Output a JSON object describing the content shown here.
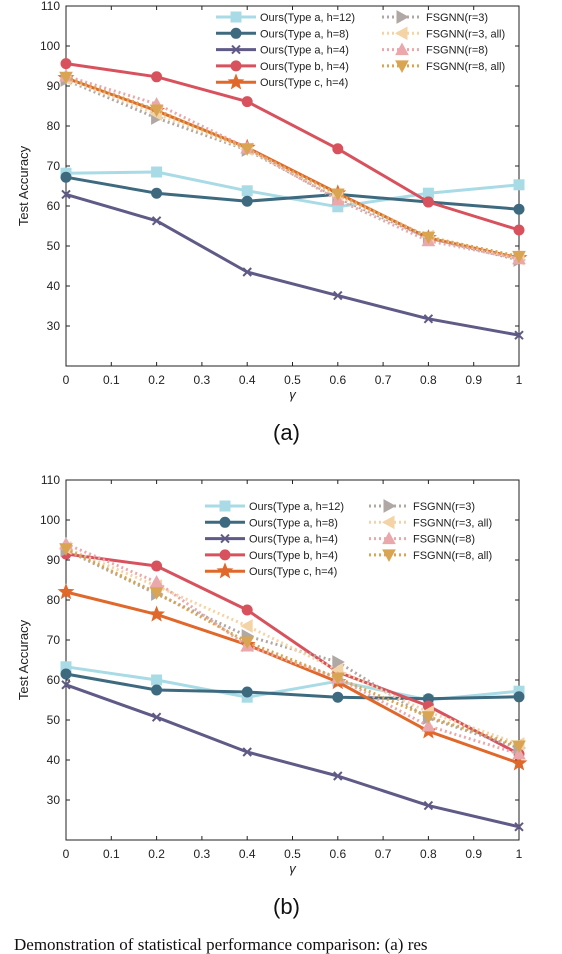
{
  "caption": "Demonstration of statistical performance comparison: (a) res",
  "chart_data": [
    {
      "type": "line",
      "panel_label": "(a)",
      "xlabel": "γ",
      "ylabel": "Test Accuracy",
      "xlim": [
        0,
        1
      ],
      "ylim": [
        20,
        110
      ],
      "xticks": [
        "0",
        "0.1",
        "0.2",
        "0.3",
        "0.4",
        "0.5",
        "0.6",
        "0.7",
        "0.8",
        "0.9",
        "1"
      ],
      "yticks": [
        "30",
        "40",
        "50",
        "60",
        "70",
        "80",
        "90",
        "100",
        "110"
      ],
      "legend_position": "top-right",
      "series": [
        {
          "name": "Ours(Type a,  h=12)",
          "color": "#a8dbe5",
          "marker": "square",
          "dash": "solid",
          "x": [
            0,
            0.2,
            0.4,
            0.6,
            0.8,
            1
          ],
          "y": [
            68.2,
            68.5,
            63.8,
            59.8,
            63.2,
            65.3
          ]
        },
        {
          "name": "Ours(Type a,  h=8)",
          "color": "#3e6a7f",
          "marker": "circle",
          "dash": "solid",
          "x": [
            0,
            0.2,
            0.4,
            0.6,
            0.8,
            1
          ],
          "y": [
            67.2,
            63.2,
            61.2,
            62.9,
            61.0,
            59.2
          ]
        },
        {
          "name": "Ours(Type a,  h=4)",
          "color": "#5f5a86",
          "marker": "x",
          "dash": "solid",
          "x": [
            0,
            0.2,
            0.4,
            0.6,
            0.8,
            1
          ],
          "y": [
            62.9,
            56.3,
            43.5,
            37.6,
            31.8,
            27.7
          ]
        },
        {
          "name": "Ours(Type b,  h=4)",
          "color": "#d8525e",
          "marker": "circle",
          "dash": "solid",
          "x": [
            0,
            0.2,
            0.4,
            0.6,
            0.8,
            1
          ],
          "y": [
            95.6,
            92.3,
            86.1,
            74.3,
            61.0,
            54.0
          ]
        },
        {
          "name": "Ours(Type c,  h=4)",
          "color": "#e0682a",
          "marker": "star",
          "dash": "solid",
          "x": [
            0,
            0.2,
            0.4,
            0.6,
            0.8,
            1
          ],
          "y": [
            92.0,
            83.8,
            74.6,
            63.2,
            52.0,
            47.0
          ]
        },
        {
          "name": "FSGNN(r=3)",
          "color": "#b0a8a4",
          "marker": "triangle-right",
          "dash": "dotted",
          "x": [
            0,
            0.2,
            0.4,
            0.6,
            0.8,
            1
          ],
          "y": [
            91.5,
            82.0,
            74.0,
            62.0,
            52.0,
            46.5
          ]
        },
        {
          "name": "FSGNN(r=3, all)",
          "color": "#f4d3a6",
          "marker": "triangle-left",
          "dash": "dotted",
          "x": [
            0,
            0.2,
            0.4,
            0.6,
            0.8,
            1
          ],
          "y": [
            91.8,
            83.0,
            74.2,
            62.5,
            52.4,
            46.8
          ]
        },
        {
          "name": "FSGNN(r=8)",
          "color": "#eba8ac",
          "marker": "triangle-up",
          "dash": "dotted",
          "x": [
            0,
            0.2,
            0.4,
            0.6,
            0.8,
            1
          ],
          "y": [
            92.5,
            85.5,
            74.5,
            61.5,
            51.3,
            46.8
          ]
        },
        {
          "name": "FSGNN(r=8, all)",
          "color": "#d9a552",
          "marker": "triangle-down",
          "dash": "dotted",
          "x": [
            0,
            0.2,
            0.4,
            0.6,
            0.8,
            1
          ],
          "y": [
            92.2,
            84.0,
            74.3,
            63.0,
            52.2,
            47.4
          ]
        }
      ]
    },
    {
      "type": "line",
      "panel_label": "(b)",
      "xlabel": "γ",
      "ylabel": "Test Accuracy",
      "xlim": [
        0,
        1
      ],
      "ylim": [
        20,
        110
      ],
      "xticks": [
        "0",
        "0.1",
        "0.2",
        "0.3",
        "0.4",
        "0.5",
        "0.6",
        "0.7",
        "0.8",
        "0.9",
        "1"
      ],
      "yticks": [
        "30",
        "40",
        "50",
        "60",
        "70",
        "80",
        "90",
        "100",
        "110"
      ],
      "legend_position": "top-right",
      "series": [
        {
          "name": "Ours(Type a,  h=12)",
          "color": "#a8dbe5",
          "marker": "square",
          "dash": "solid",
          "x": [
            0,
            0.2,
            0.4,
            0.6,
            0.8,
            1
          ],
          "y": [
            63.3,
            60.0,
            55.7,
            59.7,
            55.0,
            57.2
          ]
        },
        {
          "name": "Ours(Type a,  h=8)",
          "color": "#3e6a7f",
          "marker": "circle",
          "dash": "solid",
          "x": [
            0,
            0.2,
            0.4,
            0.6,
            0.8,
            1
          ],
          "y": [
            61.5,
            57.5,
            57.0,
            55.7,
            55.3,
            55.8
          ]
        },
        {
          "name": "Ours(Type a,  h=4)",
          "color": "#5f5a86",
          "marker": "x",
          "dash": "solid",
          "x": [
            0,
            0.2,
            0.4,
            0.6,
            0.8,
            1
          ],
          "y": [
            58.8,
            50.7,
            42.0,
            36.0,
            28.6,
            23.3
          ]
        },
        {
          "name": "Ours(Type b,  h=4)",
          "color": "#d8525e",
          "marker": "circle",
          "dash": "solid",
          "x": [
            0,
            0.2,
            0.4,
            0.6,
            0.8,
            1
          ],
          "y": [
            91.5,
            88.5,
            77.5,
            62.0,
            53.5,
            41.5
          ]
        },
        {
          "name": "Ours(Type c,  h=4)",
          "color": "#e0682a",
          "marker": "star",
          "dash": "solid",
          "x": [
            0,
            0.2,
            0.4,
            0.6,
            0.8,
            1
          ],
          "y": [
            82.0,
            76.4,
            68.8,
            59.5,
            47.2,
            39.2
          ]
        },
        {
          "name": "FSGNN(r=3)",
          "color": "#b0a8a4",
          "marker": "triangle-right",
          "dash": "dotted",
          "x": [
            0,
            0.2,
            0.4,
            0.6,
            0.8,
            1
          ],
          "y": [
            92.5,
            81.5,
            71.0,
            64.5,
            50.5,
            43.0
          ]
        },
        {
          "name": "FSGNN(r=3, all)",
          "color": "#f4d3a6",
          "marker": "triangle-left",
          "dash": "dotted",
          "x": [
            0,
            0.2,
            0.4,
            0.6,
            0.8,
            1
          ],
          "y": [
            93.0,
            83.5,
            73.5,
            62.5,
            52.0,
            44.0
          ]
        },
        {
          "name": "FSGNN(r=8)",
          "color": "#eba8ac",
          "marker": "triangle-up",
          "dash": "dotted",
          "x": [
            0,
            0.2,
            0.4,
            0.6,
            0.8,
            1
          ],
          "y": [
            94.0,
            84.5,
            68.5,
            60.5,
            48.5,
            41.5
          ]
        },
        {
          "name": "FSGNN(r=8, all)",
          "color": "#d9a552",
          "marker": "triangle-down",
          "dash": "dotted",
          "x": [
            0,
            0.2,
            0.4,
            0.6,
            0.8,
            1
          ],
          "y": [
            92.8,
            81.8,
            69.5,
            60.5,
            50.8,
            43.5
          ]
        }
      ]
    }
  ]
}
